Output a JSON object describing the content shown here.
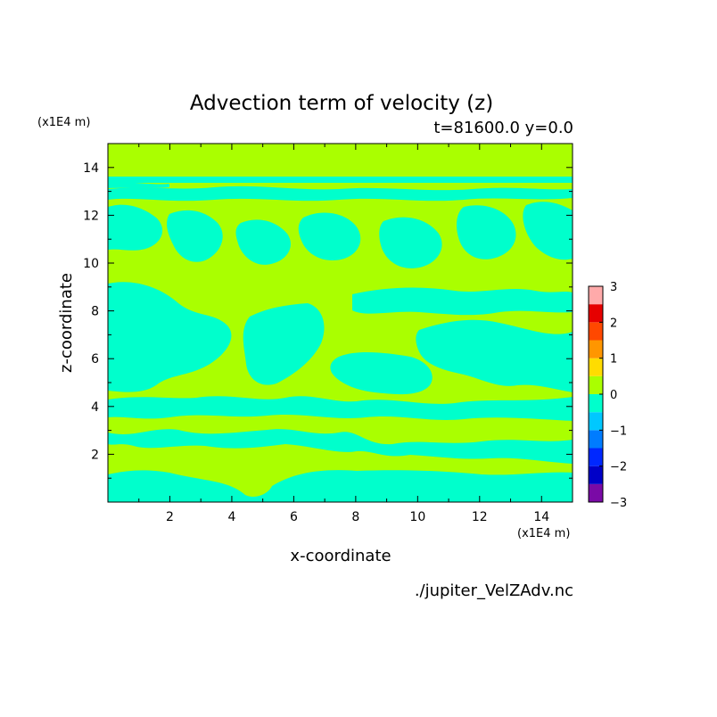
{
  "chart_data": {
    "type": "heatmap",
    "title": "Advection term of velocity (z)",
    "subtitle": "t=81600.0 y=0.0",
    "xlabel": "x-coordinate",
    "ylabel": "z-coordinate",
    "x_unit": "(x1E4 m)",
    "y_unit": "(x1E4 m)",
    "xlim": [
      0,
      15
    ],
    "ylim": [
      0,
      15
    ],
    "x_ticks": [
      2,
      4,
      6,
      8,
      10,
      12,
      14
    ],
    "y_ticks": [
      2,
      4,
      6,
      8,
      10,
      12,
      14
    ],
    "x_tick_labels": [
      "2",
      "4",
      "6",
      "8",
      "10",
      "12",
      "14"
    ],
    "y_tick_labels": [
      "2",
      "4",
      "6",
      "8",
      "10",
      "12",
      "14"
    ],
    "colorbar": {
      "levels": [
        -3,
        -2.5,
        -2,
        -1.5,
        -1,
        -0.5,
        0,
        0.5,
        1,
        1.5,
        2,
        2.5,
        3
      ],
      "tick_values": [
        -3,
        -2,
        -1,
        0,
        1,
        2,
        3
      ],
      "tick_labels": [
        "−3",
        "−2",
        "−1",
        "0",
        "1",
        "2",
        "3"
      ],
      "colors": [
        "#7a0aa6",
        "#0000c8",
        "#0028ff",
        "#007cff",
        "#00c8ff",
        "#00ffcc",
        "#aaff00",
        "#ffdc00",
        "#ff9600",
        "#ff4800",
        "#e60000",
        "#ffaaaa"
      ]
    },
    "field_summary": "alternating bands and blobs of 0..0.5 (yellow-green) and -0.5..0 (cyan); thin cyan streak near z=13.5",
    "source": "./jupiter_VelZAdv.nc"
  },
  "colors": {
    "positive_level": "#aaff00",
    "negative_level": "#00ffcc"
  }
}
